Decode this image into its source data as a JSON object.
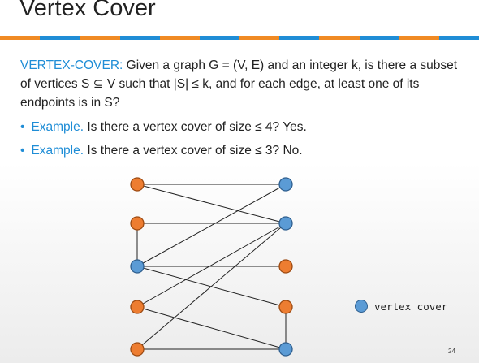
{
  "slide": {
    "title": "Vertex Cover",
    "definition": {
      "keyword": "VERTEX-COVER:",
      "text": " Given a graph G = (V, E) and an integer k, is there a subset of vertices S ⊆ V such that |S| ≤ k, and for each edge, at least one of its endpoints is in S?"
    },
    "bullets": [
      {
        "marker": "•",
        "keyword": "Example.",
        "text": " Is there a vertex cover of size ≤ 4?  Yes."
      },
      {
        "marker": "•",
        "keyword": "Example.",
        "text": " Is there a vertex cover of size ≤ 3?  No."
      }
    ],
    "legend_label": "vertex cover",
    "page_number": "24"
  },
  "colors": {
    "accent_blue": "#1f8dd6",
    "accent_orange": "#f08a24",
    "node_orange": "#ed7d31",
    "node_blue": "#5b9bd5",
    "edge": "#222222"
  },
  "graph": {
    "left_nodes": [
      {
        "id": "L1",
        "in_cover": false
      },
      {
        "id": "L2",
        "in_cover": false
      },
      {
        "id": "L3",
        "in_cover": true
      },
      {
        "id": "L4",
        "in_cover": false
      },
      {
        "id": "L5",
        "in_cover": false
      }
    ],
    "right_nodes": [
      {
        "id": "R1",
        "in_cover": true
      },
      {
        "id": "R2",
        "in_cover": true
      },
      {
        "id": "R3",
        "in_cover": false
      },
      {
        "id": "R4",
        "in_cover": false
      },
      {
        "id": "R5",
        "in_cover": true
      }
    ],
    "edges": [
      [
        "L1",
        "R1"
      ],
      [
        "L1",
        "R2"
      ],
      [
        "L2",
        "R2"
      ],
      [
        "L2",
        "L3"
      ],
      [
        "L3",
        "R1"
      ],
      [
        "L3",
        "R3"
      ],
      [
        "L3",
        "R4"
      ],
      [
        "L4",
        "R2"
      ],
      [
        "L4",
        "R5"
      ],
      [
        "L5",
        "R2"
      ],
      [
        "L5",
        "R5"
      ],
      [
        "R4",
        "R5"
      ]
    ]
  }
}
